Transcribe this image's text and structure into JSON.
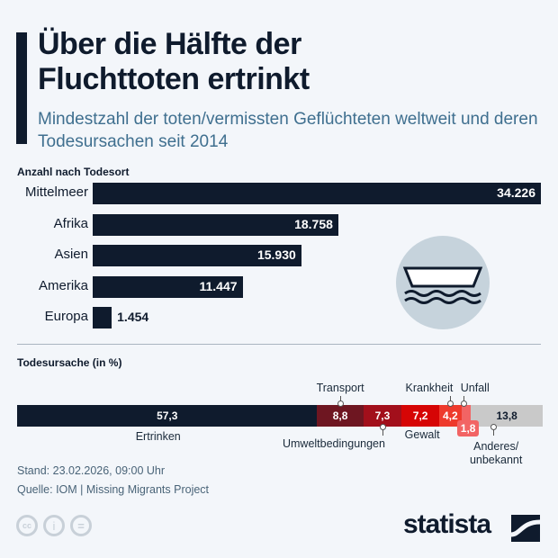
{
  "title": "Über die Hälfte der Fluchttoten ertrinkt",
  "subtitle": "Mindestzahl der toten/vermissten Geflüchteten weltweit und deren Todesursachen seit 2014",
  "footer": {
    "stand": "Stand: 23.02.2026, 09:00 Uhr",
    "quelle": "Quelle: IOM | Missing Migrants Project",
    "brand": "statista"
  },
  "icons": [
    "boat-icon",
    "cc-icon",
    "by-icon",
    "nd-icon",
    "statista-logo-icon"
  ],
  "chart_data": [
    {
      "type": "bar",
      "title": "Anzahl nach Todesort",
      "orientation": "horizontal",
      "categories": [
        "Mittelmeer",
        "Afrika",
        "Asien",
        "Amerika",
        "Europa"
      ],
      "values": [
        34226,
        18758,
        15930,
        11447,
        1454
      ],
      "value_labels": [
        "34.226",
        "18.758",
        "15.930",
        "11.447",
        "1.454"
      ],
      "color": "#0f1b2d"
    },
    {
      "type": "bar",
      "stacked": true,
      "title": "Todesursache (in %)",
      "categories": [
        "Ertrinken",
        "Transport",
        "Umweltbedingungen",
        "Gewalt",
        "Krankheit",
        "Unfall",
        "Anderes/ unbekannt"
      ],
      "values": [
        57.3,
        8.8,
        7.3,
        7.2,
        4.2,
        1.8,
        13.8
      ],
      "value_labels": [
        "57,3",
        "8,8",
        "7,3",
        "7,2",
        "4,2",
        "1,8",
        "13,8"
      ],
      "colors": [
        "#0f1b2d",
        "#6e1621",
        "#a20f1b",
        "#d60505",
        "#ee3a2c",
        "#f26464",
        "#c9c9c9"
      ]
    }
  ]
}
